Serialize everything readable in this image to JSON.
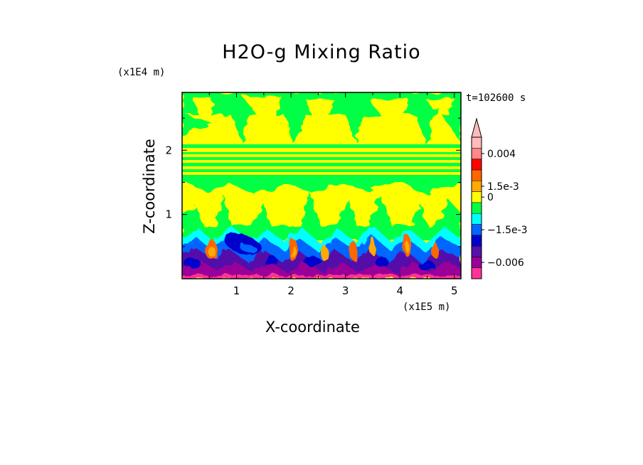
{
  "chart_data": {
    "type": "heatmap",
    "title": "H2O-g Mixing Ratio",
    "xlabel": "X-coordinate",
    "ylabel": "Z-coordinate",
    "x_unit": "(x1E5 m)",
    "y_unit": "(x1E4 m)",
    "time_label": "t=102600 s",
    "x_ticks": [
      "1",
      "2",
      "3",
      "4",
      "5"
    ],
    "y_ticks": [
      "1",
      "2"
    ],
    "xlim": [
      0,
      5.12
    ],
    "ylim": [
      0,
      2.9
    ],
    "colorbar": {
      "labels": [
        "0.004",
        "1.5e-3",
        "0",
        "−1.5e-3",
        "−0.006"
      ],
      "colors": [
        "#ff3399",
        "#990099",
        "#5511aa",
        "#0000cc",
        "#0066ff",
        "#00ffff",
        "#00ff44",
        "#ffff00",
        "#ffaa00",
        "#ff6600",
        "#ff0000",
        "#ff8888",
        "#ffbbbb"
      ]
    }
  }
}
